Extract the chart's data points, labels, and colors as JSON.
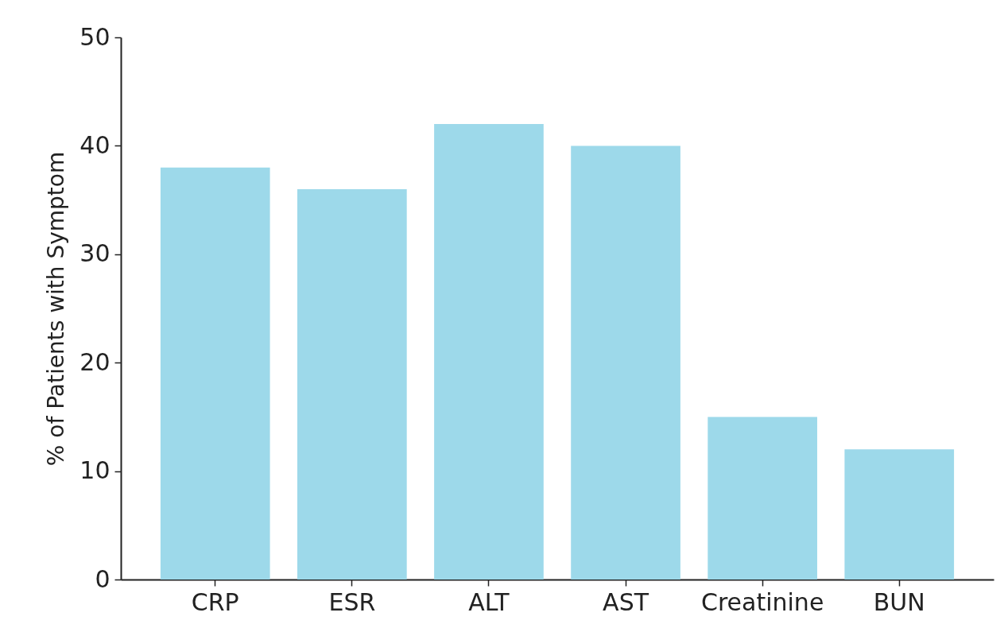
{
  "chart_data": {
    "type": "bar",
    "ylabel": "% of Patients with Symptom",
    "categories": [
      "CRP",
      "ESR",
      "ALT",
      "AST",
      "Creatinine",
      "BUN"
    ],
    "values": [
      38,
      36,
      42,
      40,
      15,
      12
    ],
    "color": "#9dd9ea",
    "ylim": [
      0,
      50
    ],
    "yticks": [
      0,
      10,
      20,
      30,
      40,
      50
    ],
    "grid": false
  }
}
